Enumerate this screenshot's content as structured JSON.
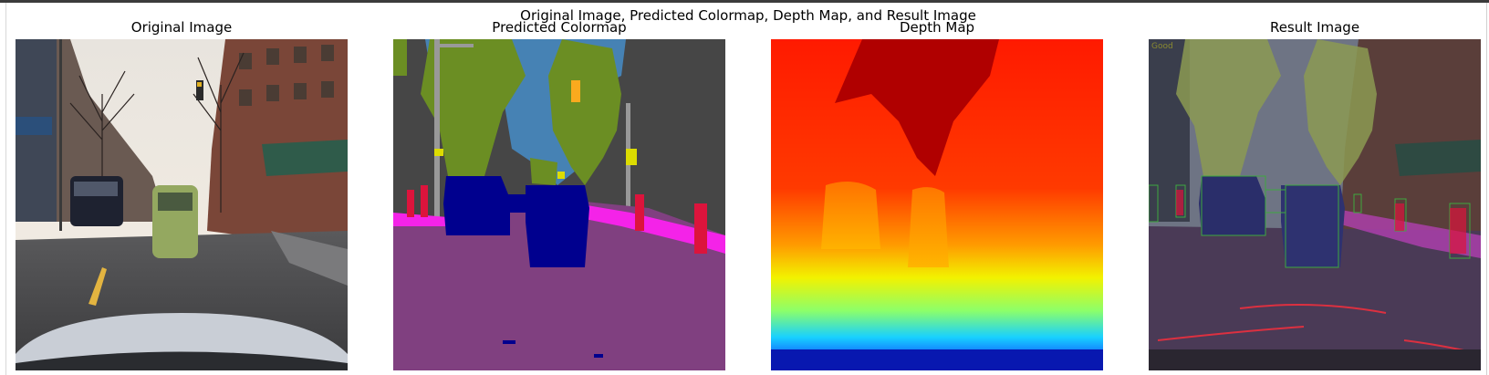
{
  "figure": {
    "suptitle": "Original Image, Predicted Colormap, Depth Map, and Result Image"
  },
  "panels": {
    "original": {
      "title": "Original Image"
    },
    "colormap": {
      "title": "Predicted Colormap"
    },
    "depth": {
      "title": "Depth Map"
    },
    "result": {
      "title": "Result Image",
      "overlay_text": "Good"
    }
  },
  "colors": {
    "road": "#804080",
    "sky": "#4682b4",
    "vegetation": "#6b8e23",
    "building": "#464646",
    "sidewalk": "#f423e8",
    "car": "#00008e",
    "person": "#dc143c",
    "traffic_sign": "#dcdc00",
    "traffic_light": "#faaa1e",
    "pole": "#999999",
    "box_outline": "#3fa83f"
  }
}
